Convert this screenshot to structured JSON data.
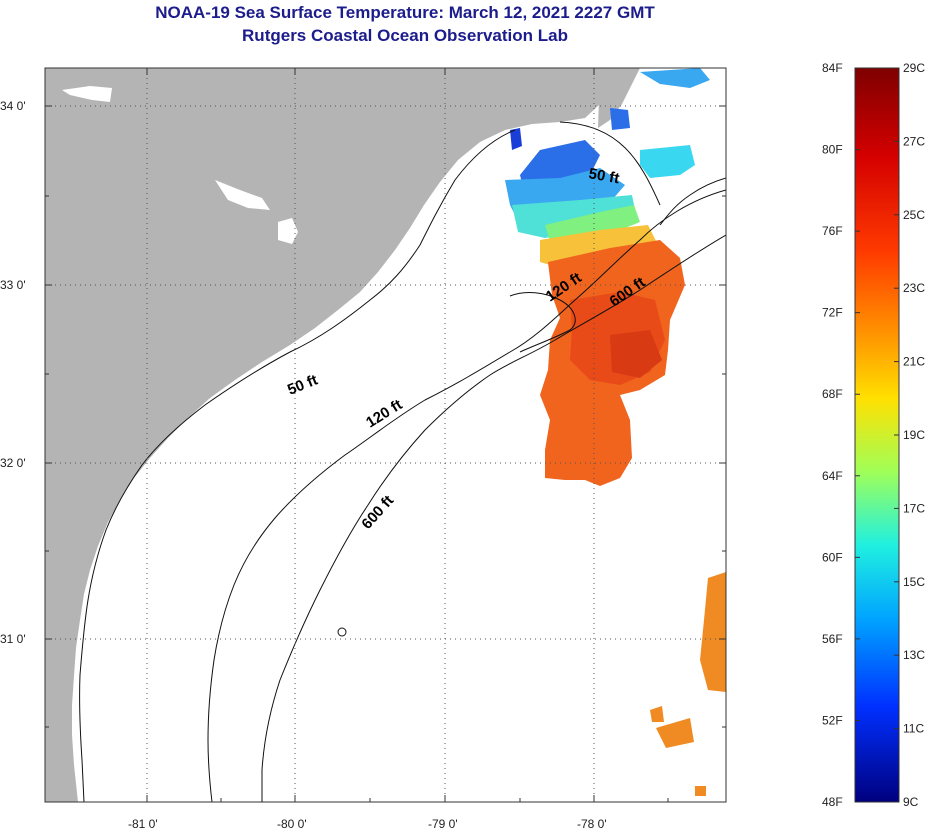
{
  "header": {
    "title_line1": "NOAA-19 Sea Surface Temperature:  March 12, 2021 2227 GMT",
    "title_line2": "Rutgers Coastal Ocean Observation Lab"
  },
  "map": {
    "lat_labels": [
      "34 0'",
      "33 0'",
      "32 0'",
      "31 0'"
    ],
    "lon_labels": [
      "-81 0'",
      "-80 0'",
      "-79 0'",
      "-78 0'"
    ],
    "contour_labels": {
      "c50_north": "50 ft",
      "c50_south": "50 ft",
      "c120_north": "120 ft",
      "c120_south": "120 ft",
      "c600_north": "600 ft",
      "c600_south": "600 ft"
    },
    "colors": {
      "land": "#b4b4b4",
      "ocean": "#ffffff",
      "grid": "#555555"
    }
  },
  "colorbar": {
    "f_labels": [
      "84F",
      "80F",
      "76F",
      "72F",
      "68F",
      "64F",
      "60F",
      "56F",
      "52F",
      "48F"
    ],
    "c_labels": [
      "29C",
      "27C",
      "25C",
      "23C",
      "21C",
      "19C",
      "17C",
      "15C",
      "13C",
      "11C",
      "9C"
    ],
    "f_range": [
      48,
      84
    ],
    "c_range": [
      9,
      29
    ]
  }
}
